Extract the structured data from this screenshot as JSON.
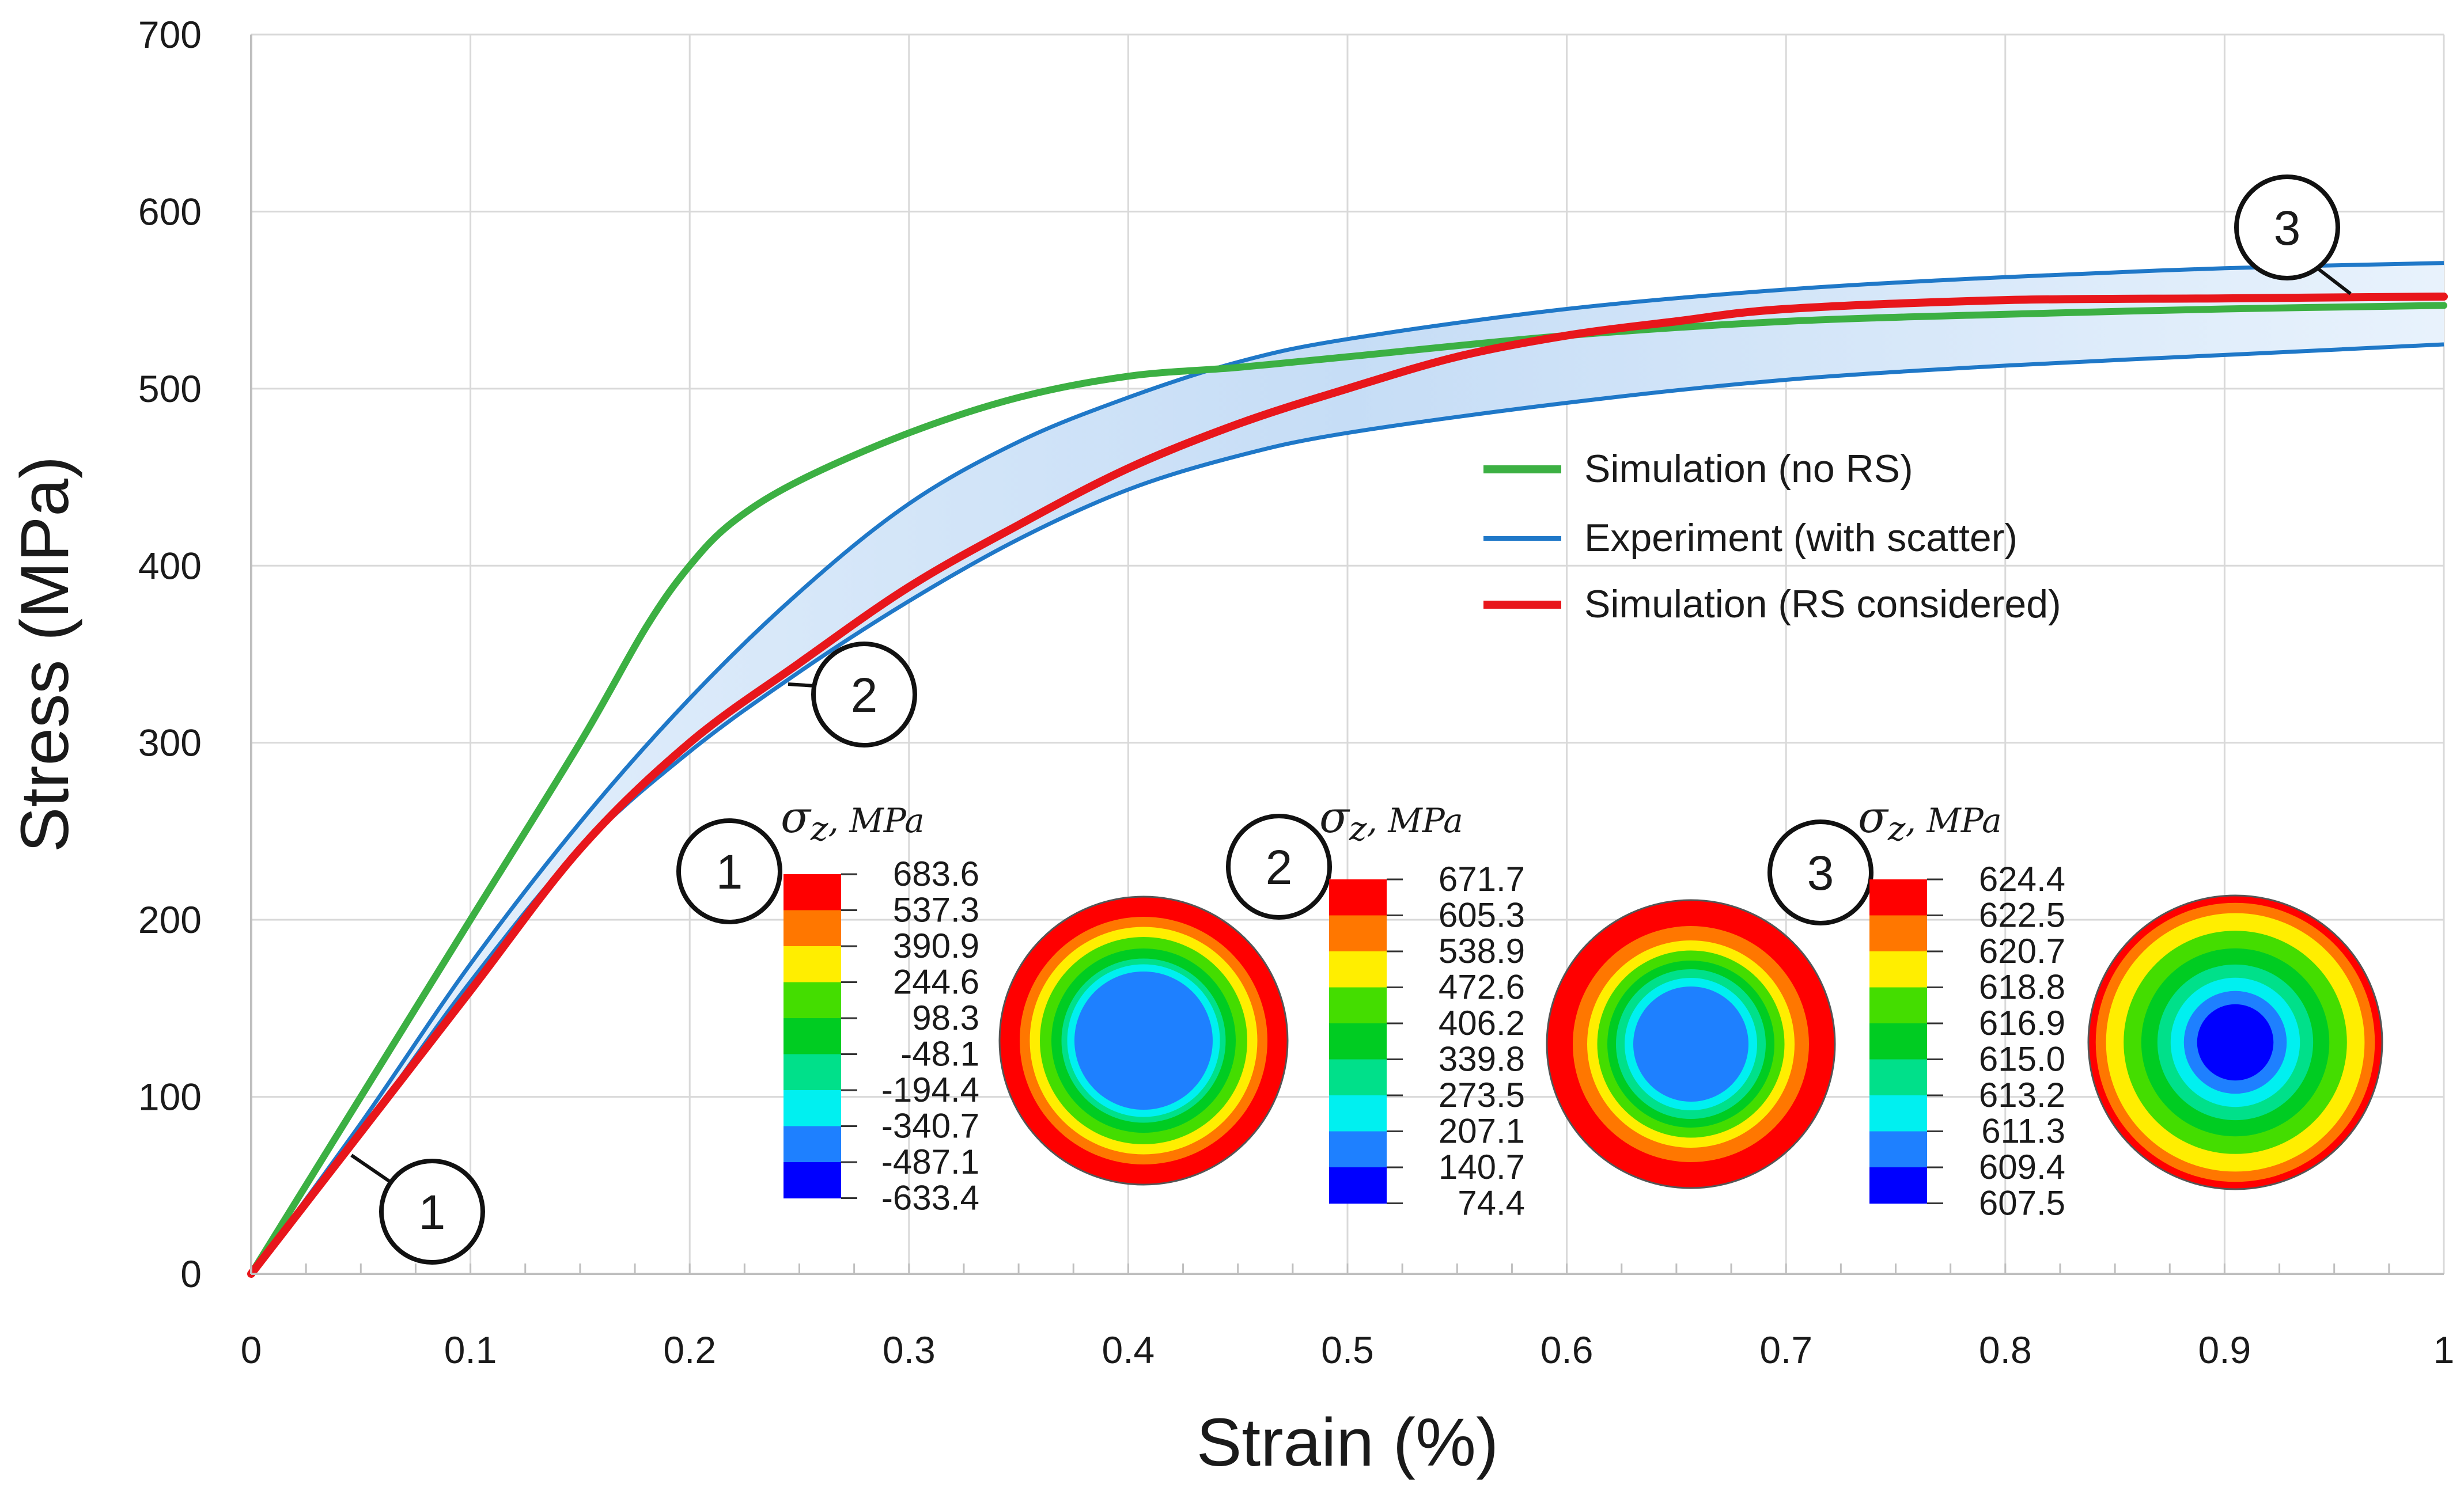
{
  "chart_data": {
    "type": "line",
    "title": "",
    "xlabel": "Strain (%)",
    "ylabel": "Stress (MPa)",
    "xlim": [
      0,
      1
    ],
    "ylim": [
      0,
      700
    ],
    "grid": true,
    "x_ticks": [
      0,
      0.1,
      0.2,
      0.3,
      0.4,
      0.5,
      0.6,
      0.7,
      0.8,
      0.9,
      1
    ],
    "x_tick_labels": [
      "0",
      "0.1",
      "0.2",
      "0.3",
      "0.4",
      "0.5",
      "0.6",
      "0.7",
      "0.8",
      "0.9",
      "1"
    ],
    "y_ticks": [
      0,
      100,
      200,
      300,
      400,
      500,
      600,
      700
    ],
    "y_tick_labels": [
      "0",
      "100",
      "200",
      "300",
      "400",
      "500",
      "600",
      "700"
    ],
    "legend_position": "center-right",
    "series": [
      {
        "name": "Simulation (no RS)",
        "color": "#3cb043",
        "x": [
          0,
          0.05,
          0.1,
          0.15,
          0.18,
          0.2,
          0.22,
          0.25,
          0.3,
          0.35,
          0.4,
          0.45,
          0.5,
          0.6,
          0.7,
          0.8,
          0.9,
          1.0
        ],
        "y": [
          0,
          100,
          200,
          300,
          365,
          400,
          425,
          448,
          475,
          495,
          507,
          512,
          518,
          530,
          538,
          542,
          545,
          547
        ]
      },
      {
        "name": "Experiment (with scatter)",
        "color": "#1f78c8",
        "upper": {
          "x": [
            0,
            0.05,
            0.1,
            0.15,
            0.2,
            0.25,
            0.3,
            0.35,
            0.4,
            0.45,
            0.5,
            0.6,
            0.7,
            0.8,
            0.9,
            1.0
          ],
          "y": [
            0,
            85,
            175,
            255,
            325,
            385,
            435,
            470,
            495,
            515,
            528,
            545,
            556,
            563,
            568,
            571
          ]
        },
        "lower": {
          "x": [
            0,
            0.05,
            0.1,
            0.15,
            0.2,
            0.25,
            0.3,
            0.35,
            0.4,
            0.45,
            0.5,
            0.6,
            0.7,
            0.8,
            0.9,
            1.0
          ],
          "y": [
            0,
            80,
            165,
            240,
            295,
            340,
            380,
            415,
            443,
            462,
            475,
            492,
            505,
            513,
            519,
            525
          ]
        }
      },
      {
        "name": "Simulation (RS considered)",
        "color": "#e8161b",
        "x": [
          0,
          0.05,
          0.1,
          0.15,
          0.2,
          0.25,
          0.3,
          0.35,
          0.4,
          0.45,
          0.5,
          0.55,
          0.6,
          0.65,
          0.7,
          0.8,
          0.9,
          1.0
        ],
        "y": [
          0,
          80,
          160,
          240,
          300,
          345,
          388,
          423,
          455,
          480,
          500,
          518,
          530,
          538,
          545,
          550,
          551,
          552
        ]
      }
    ],
    "callouts": [
      {
        "label": "1",
        "x": 0.048,
        "y": 63
      },
      {
        "label": "2",
        "x": 0.245,
        "y": 337
      },
      {
        "label": "3",
        "x": 0.975,
        "y": 552
      }
    ],
    "contour_plots": [
      {
        "callout": "1",
        "title_symbol": "σ",
        "title_sub": "z",
        "title_unit": ", MPa",
        "levels": [
          "683.6",
          "537.3",
          "390.9",
          "244.6",
          "98.3",
          "-48.1",
          "-194.4",
          "-340.7",
          "-487.1",
          "-633.4"
        ],
        "ring_fractions": [
          1.0,
          0.86,
          0.79,
          0.72,
          0.64,
          0.57,
          0.53,
          0.48
        ]
      },
      {
        "callout": "2",
        "title_symbol": "σ",
        "title_sub": "z",
        "title_unit": ", MPa",
        "levels": [
          "671.7",
          "605.3",
          "538.9",
          "472.6",
          "406.2",
          "339.8",
          "273.5",
          "207.1",
          "140.7",
          "74.4"
        ],
        "ring_fractions": [
          1.0,
          0.82,
          0.72,
          0.65,
          0.58,
          0.52,
          0.46,
          0.4
        ]
      },
      {
        "callout": "3",
        "title_symbol": "σ",
        "title_sub": "z",
        "title_unit": ", MPa",
        "levels": [
          "624.4",
          "622.5",
          "620.7",
          "618.8",
          "616.9",
          "615.0",
          "613.2",
          "611.3",
          "609.4",
          "607.5"
        ],
        "ring_fractions": [
          1.0,
          0.95,
          0.88,
          0.76,
          0.64,
          0.53,
          0.44,
          0.35,
          0.26
        ]
      }
    ],
    "contour_colors": [
      "#ff0000",
      "#ff7700",
      "#ffee00",
      "#44dd00",
      "#00cc22",
      "#00e08a",
      "#00f0f0",
      "#1e80ff",
      "#0000ff"
    ],
    "band_fill": "#cfe4f8"
  }
}
